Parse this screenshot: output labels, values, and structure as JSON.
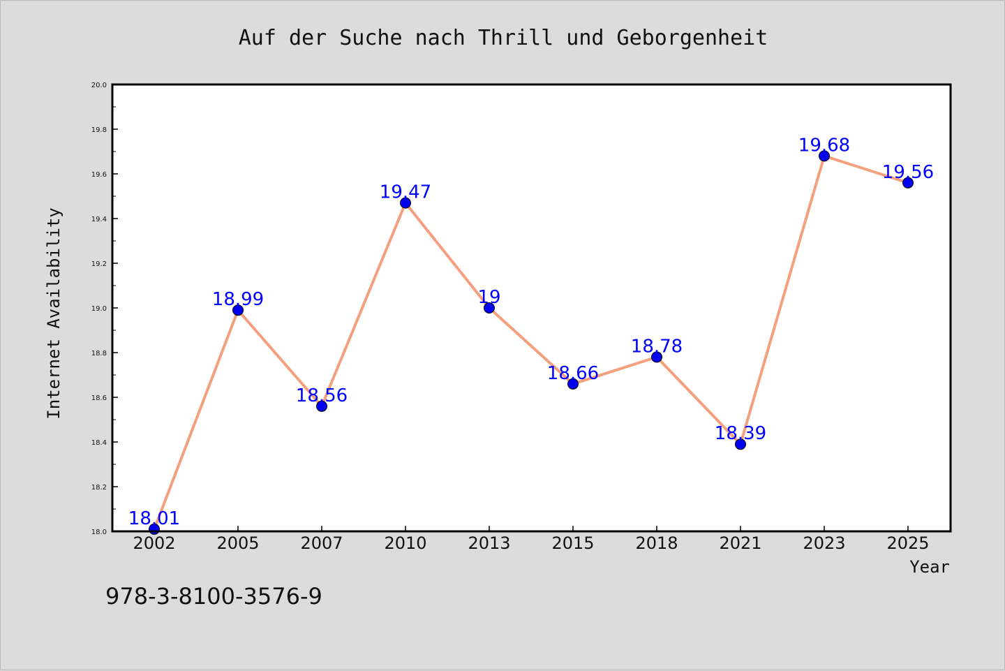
{
  "chart_data": {
    "type": "line",
    "title": "Auf der Suche nach Thrill und Geborgenheit",
    "xlabel": "Year",
    "ylabel": "Internet Availability",
    "categories": [
      "2002",
      "2005",
      "2007",
      "2010",
      "2013",
      "2015",
      "2018",
      "2021",
      "2023",
      "2025"
    ],
    "series": [
      {
        "values": [
          18.01,
          18.99,
          18.56,
          19.47,
          19.0,
          18.66,
          18.78,
          18.39,
          19.68,
          19.56
        ],
        "data_labels": [
          "18.01",
          "18.99",
          "18.56",
          "19.47",
          "19",
          "18.66",
          "18.78",
          "18.39",
          "19.68",
          "19.56"
        ],
        "line_color": "#f4a07e",
        "marker_color": "#0000ee",
        "label_color": "#0000ff"
      }
    ],
    "ylim": [
      18.0,
      20.0
    ],
    "yticks": [
      "18.0",
      "18.2",
      "18.4",
      "18.6",
      "18.8",
      "19.0",
      "19.2",
      "19.4",
      "19.6",
      "19.8",
      "20.0"
    ],
    "grid": false,
    "legend": "none"
  },
  "footer": {
    "isbn": "978-3-8100-3576-9"
  }
}
